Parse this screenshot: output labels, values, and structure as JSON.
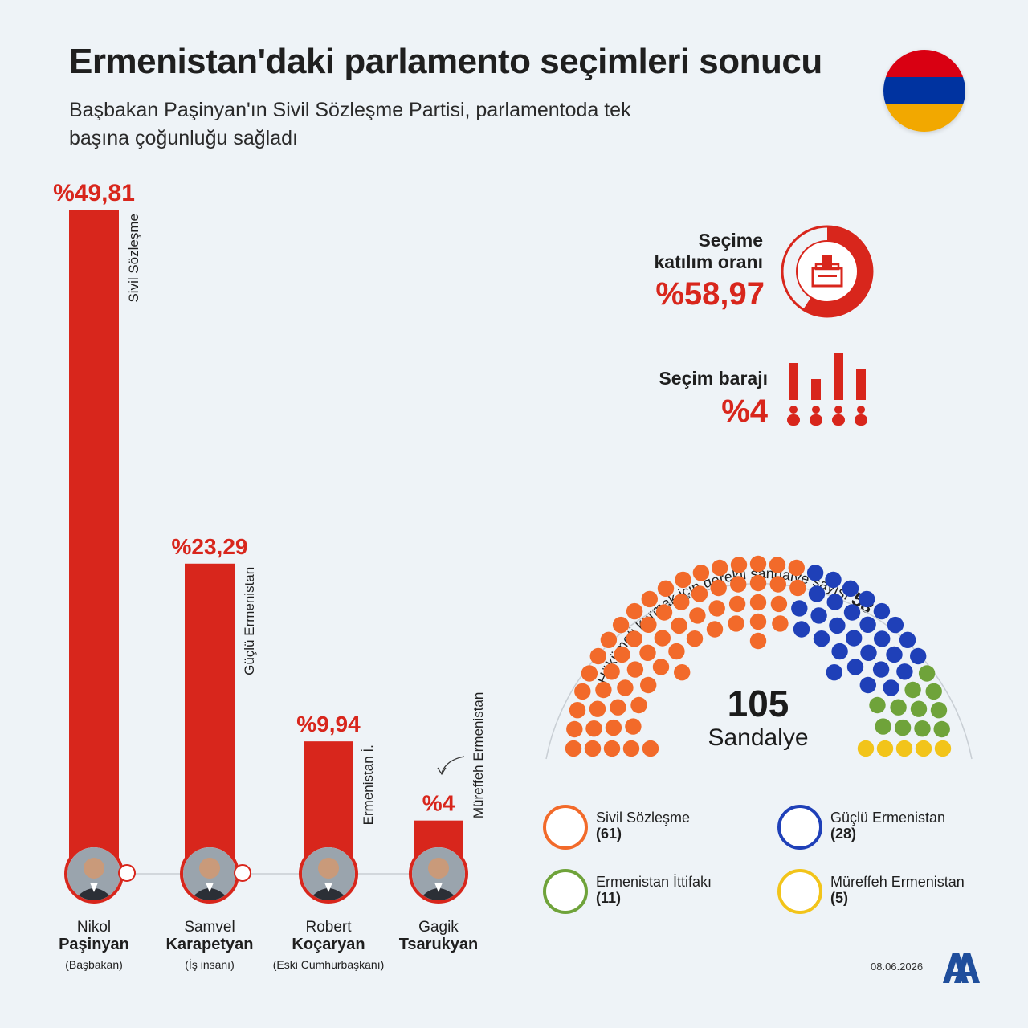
{
  "title": "Ermenistan'daki parlamento seçimleri sonucu",
  "subtitle": "Başbakan Paşinyan'ın Sivil Sözleşme Partisi, parlamentoda tek başına çoğunluğu sağladı",
  "chart_data": [
    {
      "type": "bar",
      "categories": [
        "Sivil Sözleşme",
        "Güçlü Ermenistan",
        "Ermenistan İ.",
        "Müreffeh Ermenistan"
      ],
      "values": [
        49.81,
        23.29,
        9.94,
        4
      ],
      "value_labels": [
        "%49,81",
        "%23,29",
        "%9,94",
        "%4"
      ],
      "ylim": [
        0,
        49.81
      ]
    },
    {
      "type": "pie",
      "variant": "parliament-seats",
      "total": 105,
      "total_label": "Sandalye",
      "majority_label": "Hükümeti kurmak için gerekli sandalye sayısı",
      "majority_value": "53",
      "series": [
        {
          "name": "Sivil Sözleşme",
          "value": 61,
          "count_label": "(61)",
          "color": "#f26a2a"
        },
        {
          "name": "Güçlü Ermenistan",
          "value": 28,
          "count_label": "(28)",
          "color": "#1f40b8"
        },
        {
          "name": "Ermenistan İttifakı",
          "value": 11,
          "count_label": "(11)",
          "color": "#6fa33a"
        },
        {
          "name": "Müreffeh Ermenistan",
          "value": 5,
          "count_label": "(5)",
          "color": "#f2c41a"
        }
      ]
    },
    {
      "type": "pie",
      "variant": "turnout-donut",
      "label_line1": "Seçime",
      "label_line2": "katılım oranı",
      "value": 58.97,
      "value_label": "%58,97",
      "color": "#d8261c"
    }
  ],
  "candidates": [
    {
      "first": "Nikol",
      "last": "Paşinyan",
      "role": "(Başbakan)"
    },
    {
      "first": "Samvel",
      "last": "Karapetyan",
      "role": "(İş insanı)"
    },
    {
      "first": "Robert",
      "last": "Koçaryan",
      "role": "(Eski Cumhurbaşkanı)"
    },
    {
      "first": "Gagik",
      "last": "Tsarukyan",
      "role": ""
    }
  ],
  "threshold": {
    "label": "Seçim barajı",
    "value": "%4"
  },
  "date": "08.06.2026",
  "source_logo": "AA",
  "colors": {
    "accent": "#d8261c",
    "flag": [
      "#d90012",
      "#0033a0",
      "#f2a800"
    ]
  }
}
